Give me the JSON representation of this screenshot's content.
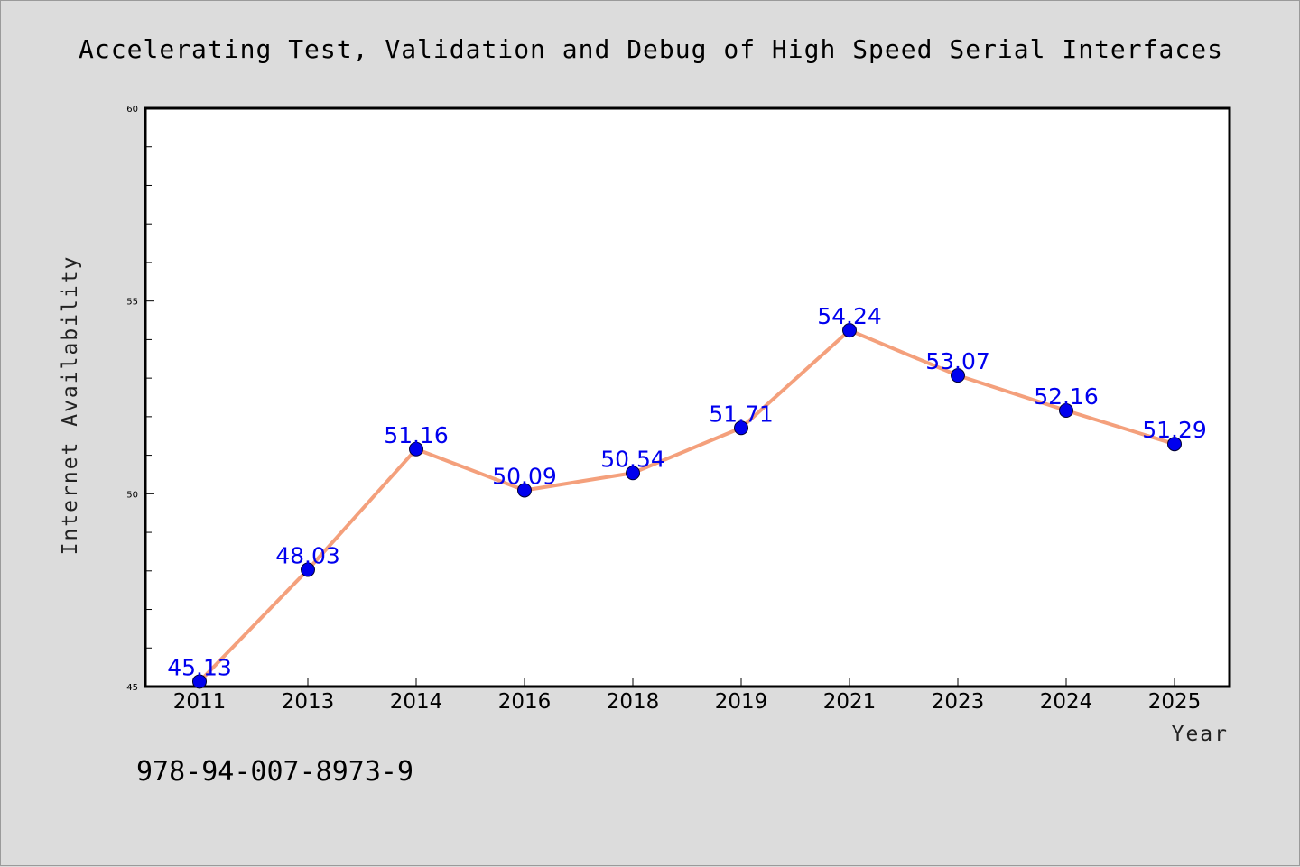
{
  "chart_data": {
    "type": "line",
    "title": "Accelerating Test, Validation and Debug of High Speed Serial Interfaces",
    "xlabel": "Year",
    "ylabel": "Internet Availability",
    "categories": [
      "2011",
      "2013",
      "2014",
      "2016",
      "2018",
      "2019",
      "2021",
      "2023",
      "2024",
      "2025"
    ],
    "series": [
      {
        "values": [
          45.13,
          48.03,
          51.16,
          50.09,
          50.54,
          51.71,
          54.24,
          53.07,
          52.16,
          51.29
        ],
        "labels": [
          "45.13",
          "48.03",
          "51.16",
          "50.09",
          "50.54",
          "51.71",
          "54.24",
          "53.07",
          "52.16",
          "51.29"
        ],
        "line_color": "#f4a07c",
        "marker_color": "#0000ee"
      }
    ],
    "ylim": [
      45,
      60
    ],
    "yticks": [
      "45",
      "50",
      "55",
      "60"
    ],
    "grid": false,
    "legend": "none"
  },
  "footer": {
    "isbn": "978-94-007-8973-9"
  }
}
